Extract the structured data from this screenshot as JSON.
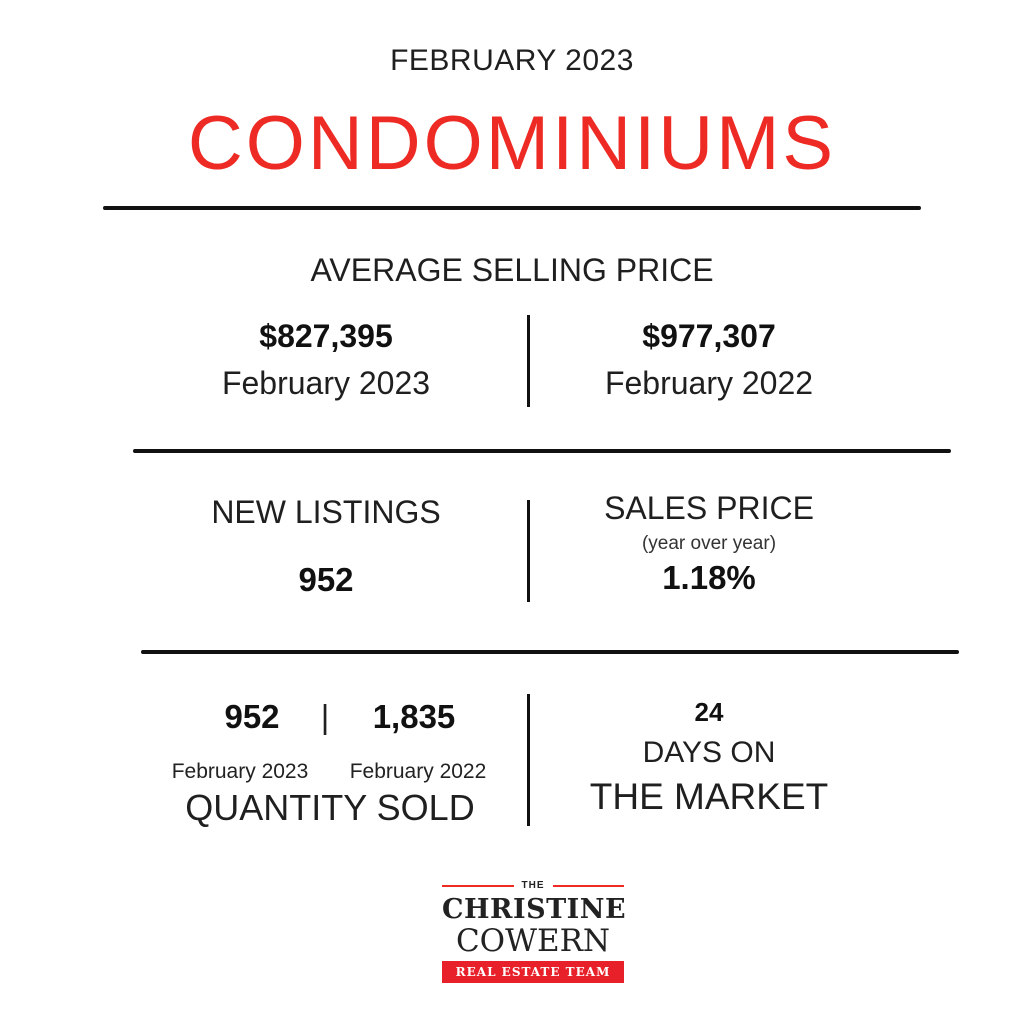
{
  "header": {
    "period": "FEBRUARY 2023",
    "title": "CONDOMINIUMS"
  },
  "average_selling_price": {
    "heading": "AVERAGE SELLING PRICE",
    "current": {
      "value": "$827,395",
      "label": "February 2023"
    },
    "previous": {
      "value": "$977,307",
      "label": "February 2022"
    }
  },
  "new_listings": {
    "heading": "NEW LISTINGS",
    "value": "952"
  },
  "sales_price": {
    "heading": "SALES PRICE",
    "note": "(year over year)",
    "value": "1.18%"
  },
  "quantity_sold": {
    "current_value": "952",
    "separator": "|",
    "previous_value": "1,835",
    "current_label": "February 2023",
    "previous_label": "February 2022",
    "title": "QUANTITY SOLD"
  },
  "days_on_market": {
    "value": "24",
    "line1": "DAYS ON",
    "line2": "THE MARKET"
  },
  "logo": {
    "the": "THE",
    "name_line1": "CHRISTINE",
    "name_line2": "COWERN",
    "tagline": "REAL ESTATE TEAM"
  },
  "colors": {
    "accent": "#ee2a24",
    "text": "#111111",
    "background": "#ffffff"
  }
}
